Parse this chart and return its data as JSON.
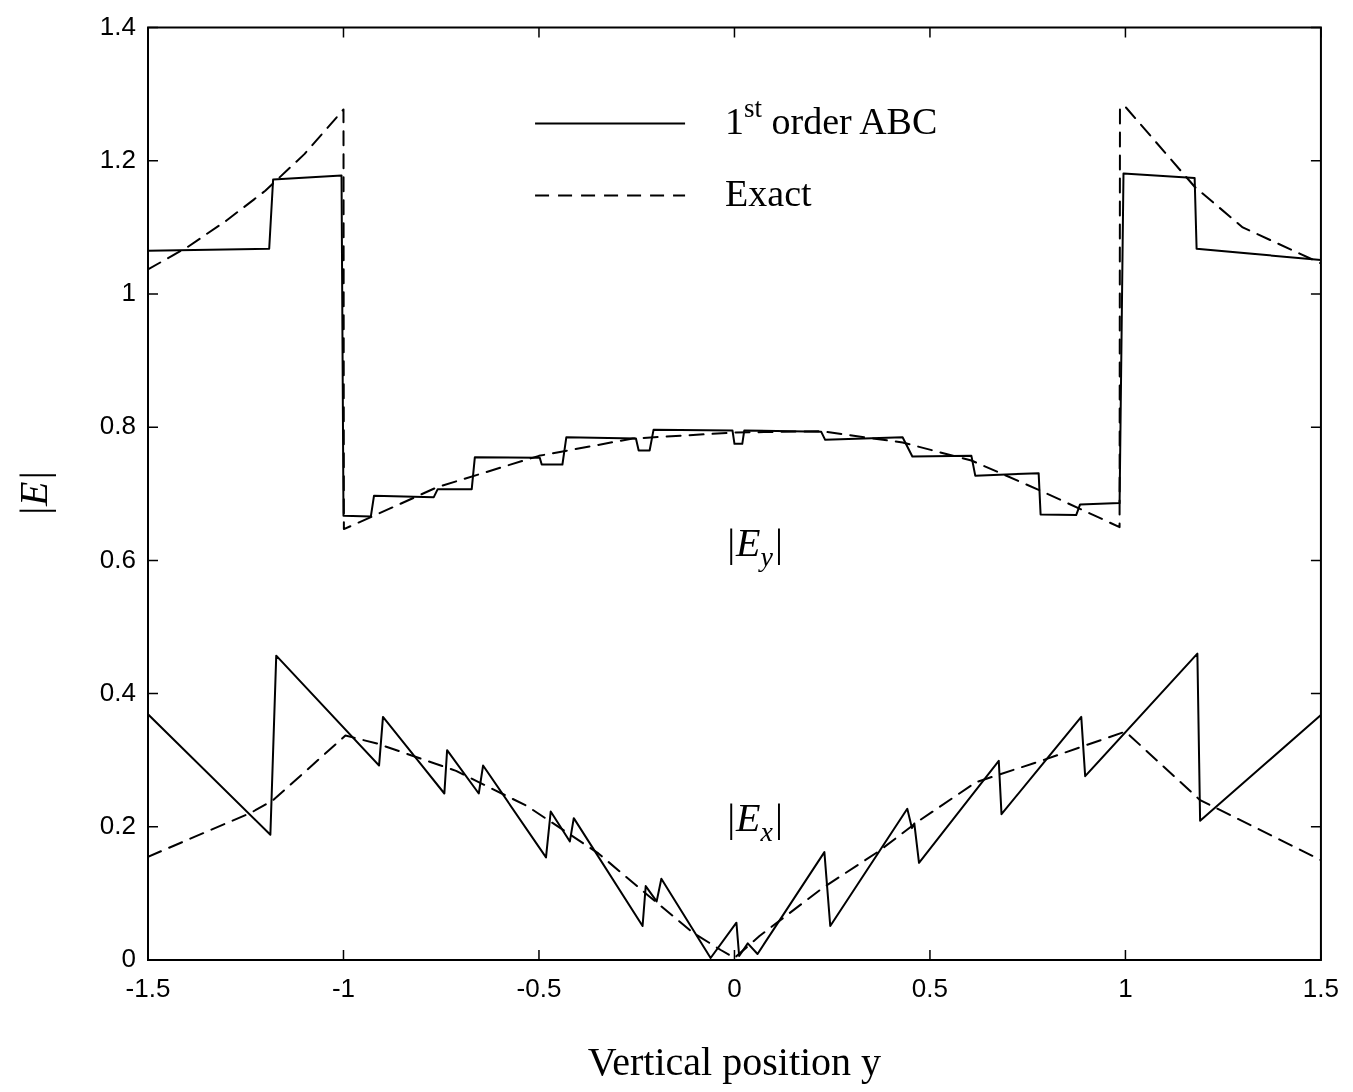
{
  "chart_data": {
    "type": "line",
    "xlabel": "Vertical position y",
    "ylabel": "|E|",
    "xlim": [
      -1.5,
      1.5
    ],
    "xticks": [
      -1.5,
      -1,
      -0.5,
      0,
      0.5,
      1,
      1.5
    ],
    "ylim": [
      0,
      1.4
    ],
    "yticks": [
      0,
      0.2,
      0.4,
      0.6,
      0.8,
      1,
      1.2,
      1.4
    ],
    "grid": false,
    "legend": "top",
    "marker": "none",
    "annotations": [
      "|E$_{y}$|",
      "|E$_{x}$|"
    ],
    "series": [
      {
        "name": "1$^{st}$ order ABC",
        "color": "#000000",
        "line_style": "solid",
        "x": [
          -1.5,
          -1.19,
          -1.18,
          -1.005,
          -1,
          -0.93,
          -0.922,
          -0.769,
          -0.759,
          -0.672,
          -0.664,
          -0.498,
          -0.493,
          -0.44,
          -0.43,
          -0.252,
          -0.245,
          -0.217,
          -0.207,
          -0.005,
          0,
          0.02,
          0.025,
          0.222,
          0.232,
          0.43,
          0.455,
          0.606,
          0.616,
          0.778,
          0.783,
          0.874,
          0.884,
          0.985,
          0.995,
          1.177,
          1.182,
          1.5
        ],
        "values": [
          1.065,
          1.068,
          1.172,
          1.178,
          0.667,
          0.666,
          0.697,
          0.695,
          0.707,
          0.707,
          0.755,
          0.754,
          0.744,
          0.744,
          0.785,
          0.783,
          0.765,
          0.765,
          0.796,
          0.795,
          0.775,
          0.775,
          0.795,
          0.793,
          0.781,
          0.785,
          0.756,
          0.757,
          0.727,
          0.731,
          0.669,
          0.668,
          0.684,
          0.686,
          1.181,
          1.174,
          1.068,
          1.051
        ]
      },
      {
        "name": "Exact",
        "color": "#000000",
        "line_style": "dashed",
        "x": [
          -1.5,
          -1.4,
          -1.3,
          -1.2,
          -1.1,
          -1.0,
          -0.999,
          -0.93,
          -0.76,
          -0.5,
          -0.26,
          0,
          0.222,
          0.43,
          0.606,
          0.778,
          0.985,
          0.986,
          1.0,
          1.177,
          1.3,
          1.5
        ],
        "values": [
          1.037,
          1.07,
          1.11,
          1.155,
          1.21,
          1.277,
          0.647,
          0.665,
          0.71,
          0.757,
          0.783,
          0.792,
          0.794,
          0.777,
          0.75,
          0.706,
          0.65,
          1.281,
          1.281,
          1.161,
          1.1,
          1.046
        ]
      },
      {
        "color": "#000000",
        "line_style": "solid",
        "x": [
          -1.5,
          -1.187,
          -1.172,
          -0.909,
          -0.899,
          -0.742,
          -0.735,
          -0.654,
          -0.643,
          -0.482,
          -0.47,
          -0.421,
          -0.411,
          -0.235,
          -0.227,
          -0.199,
          -0.187,
          -0.061,
          0.005,
          0.012,
          0.034,
          0.059,
          0.23,
          0.245,
          0.442,
          0.454,
          0.46,
          0.472,
          0.676,
          0.683,
          0.887,
          0.897,
          1.184,
          1.191,
          1.5
        ],
        "values": [
          0.369,
          0.188,
          0.457,
          0.292,
          0.365,
          0.25,
          0.315,
          0.25,
          0.292,
          0.154,
          0.223,
          0.178,
          0.213,
          0.051,
          0.111,
          0.088,
          0.122,
          0.003,
          0.056,
          0.006,
          0.025,
          0.009,
          0.162,
          0.051,
          0.227,
          0.198,
          0.205,
          0.146,
          0.299,
          0.219,
          0.365,
          0.276,
          0.46,
          0.209,
          0.368
        ]
      },
      {
        "color": "#000000",
        "line_style": "dashed",
        "x": [
          -1.5,
          -1.237,
          -1.18,
          -0.995,
          -0.914,
          -0.712,
          -0.53,
          -0.348,
          -0.227,
          -0.106,
          -0.035,
          0,
          0.064,
          0.225,
          0.366,
          0.467,
          0.618,
          0.789,
          1.0,
          1.191,
          1.5
        ],
        "values": [
          0.155,
          0.221,
          0.24,
          0.337,
          0.325,
          0.284,
          0.231,
          0.16,
          0.1,
          0.041,
          0.015,
          0.003,
          0.036,
          0.108,
          0.162,
          0.207,
          0.267,
          0.3,
          0.343,
          0.24,
          0.15
        ]
      }
    ]
  }
}
